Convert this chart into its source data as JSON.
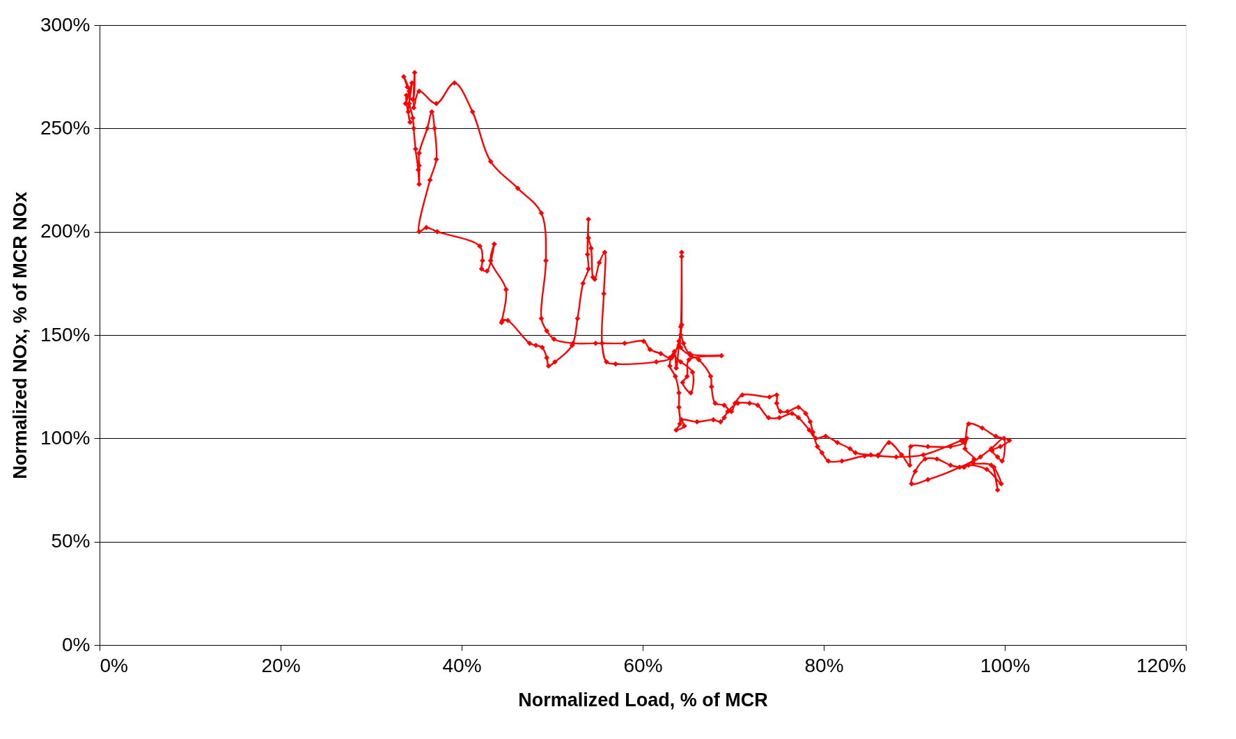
{
  "chart_data": {
    "type": "line",
    "xlabel": "Normalized Load, % of MCR",
    "ylabel": "Normalized NOx, % of MCR NOx",
    "xlim": [
      0,
      120
    ],
    "ylim": [
      0,
      300
    ],
    "xticks": [
      {
        "value": 0,
        "label": "0%"
      },
      {
        "value": 20,
        "label": "20%"
      },
      {
        "value": 40,
        "label": "40%"
      },
      {
        "value": 60,
        "label": "60%"
      },
      {
        "value": 80,
        "label": "80%"
      },
      {
        "value": 100,
        "label": "100%"
      },
      {
        "value": 120,
        "label": "120%"
      }
    ],
    "yticks": [
      {
        "value": 0,
        "label": "0%"
      },
      {
        "value": 50,
        "label": "50%"
      },
      {
        "value": 100,
        "label": "100%"
      },
      {
        "value": 150,
        "label": "150%"
      },
      {
        "value": 200,
        "label": "200%"
      },
      {
        "value": 250,
        "label": "250%"
      },
      {
        "value": 300,
        "label": "300%"
      }
    ],
    "grid": "y",
    "marker": "diamond",
    "line_style": "solid",
    "series": [
      {
        "color": "#ff0000",
        "x": [
          34,
          33.6,
          34.2,
          33.8,
          34.5,
          34.1,
          34.3,
          33.9,
          34.6,
          34.8,
          34.7,
          35.3,
          37.2,
          39.2,
          41.2,
          43.2,
          46.2,
          48.8,
          49.3,
          48.8,
          49.4,
          50.2,
          52.3,
          54.8,
          58,
          60.1,
          60.8,
          62,
          63,
          63.5,
          63.7,
          64.2,
          64.5,
          65.2,
          68.7,
          65.1,
          64.9,
          64.4,
          65.3,
          65.5,
          64.2,
          63.3,
          63,
          63.6,
          64,
          64,
          64.1,
          63.7,
          64.6,
          64.3,
          66,
          67.8,
          68.6,
          69,
          69.4,
          70.5,
          71.8,
          72.7,
          73.9,
          75.1,
          76.5,
          77.2,
          78.4,
          79.1,
          80.2,
          81.5,
          82.9,
          83.5,
          85.2,
          86,
          87.2,
          88.6,
          89.5,
          89.6,
          91.5,
          94,
          95.5,
          96,
          97.5,
          99,
          100.5,
          99.5,
          98.6,
          99.2,
          99.7,
          99.9,
          98.5,
          97.3,
          96.5,
          98.5,
          99.2,
          98.8,
          99.6,
          98,
          96,
          95.5,
          94,
          92.5,
          91.2,
          90.1,
          89.7,
          91.5,
          95,
          96.6,
          95.6,
          95.8,
          95.2,
          91,
          88,
          86,
          84.5,
          82,
          80.5,
          79.8,
          79.3,
          78.8,
          78.5,
          78,
          77.2,
          76,
          75.2,
          74.8,
          74.8,
          74,
          71,
          70.2,
          69.8,
          69,
          68,
          67.6,
          67.5,
          66.2,
          65.3,
          64.2,
          64.3,
          64.3,
          64.3,
          64.2,
          64,
          63.2,
          61.5,
          57,
          56,
          55.5,
          55.7,
          55.8,
          55.2,
          54.7,
          54.5,
          54.3,
          54,
          54,
          53.9,
          54,
          53.4,
          52.8,
          52.2,
          50.3,
          49.6,
          49.4,
          48.9,
          48.2,
          47.5,
          45.1,
          44.5,
          44.4,
          44.9,
          43.2,
          43.6,
          42.8,
          42.2,
          42.3,
          42,
          37.3,
          36.1,
          35.3,
          36.5,
          37.2,
          37,
          36.7,
          36.2,
          35.3,
          35.3,
          35.3,
          35.2,
          34.9,
          34.7,
          34.6,
          34.2
        ],
        "values": [
          270,
          275,
          268,
          262,
          272,
          258,
          253,
          266,
          264,
          277,
          260,
          268,
          262,
          272,
          258,
          234,
          221,
          209,
          186,
          158,
          152,
          148,
          146,
          146,
          146,
          147,
          143,
          141,
          139,
          142,
          134,
          150,
          146,
          141,
          140,
          138,
          130,
          127,
          122,
          132,
          137,
          140,
          135,
          130,
          122,
          115,
          107,
          104,
          106,
          109,
          108,
          109,
          108,
          110,
          113,
          117,
          117,
          116,
          110,
          110,
          112,
          110,
          104,
          100,
          101,
          98,
          95,
          93,
          92,
          92,
          98,
          92,
          87,
          96,
          96,
          96,
          98,
          107,
          105,
          101,
          99,
          96,
          94,
          91,
          89,
          100,
          95,
          91,
          88,
          87,
          75,
          86,
          78,
          85,
          87,
          86,
          87,
          90,
          90,
          84,
          78,
          80,
          86,
          90,
          95,
          100,
          99,
          92,
          91,
          91.5,
          91.5,
          89,
          89,
          93,
          96,
          103,
          108,
          112,
          115,
          113,
          113,
          117,
          121,
          120,
          121,
          117,
          113,
          116,
          117,
          125,
          130,
          138,
          140,
          144,
          155,
          188,
          190,
          154,
          147,
          139,
          137,
          136,
          137,
          146,
          170,
          190,
          185,
          177,
          178,
          192,
          197,
          206,
          189,
          182,
          175,
          158,
          145,
          137,
          135,
          139,
          144,
          145,
          146,
          157,
          157,
          156,
          172,
          186,
          194,
          181,
          182,
          186,
          193,
          200,
          202,
          200,
          225,
          235,
          250,
          258,
          250,
          238,
          232,
          223,
          230,
          240,
          250,
          255,
          262
        ]
      }
    ]
  }
}
